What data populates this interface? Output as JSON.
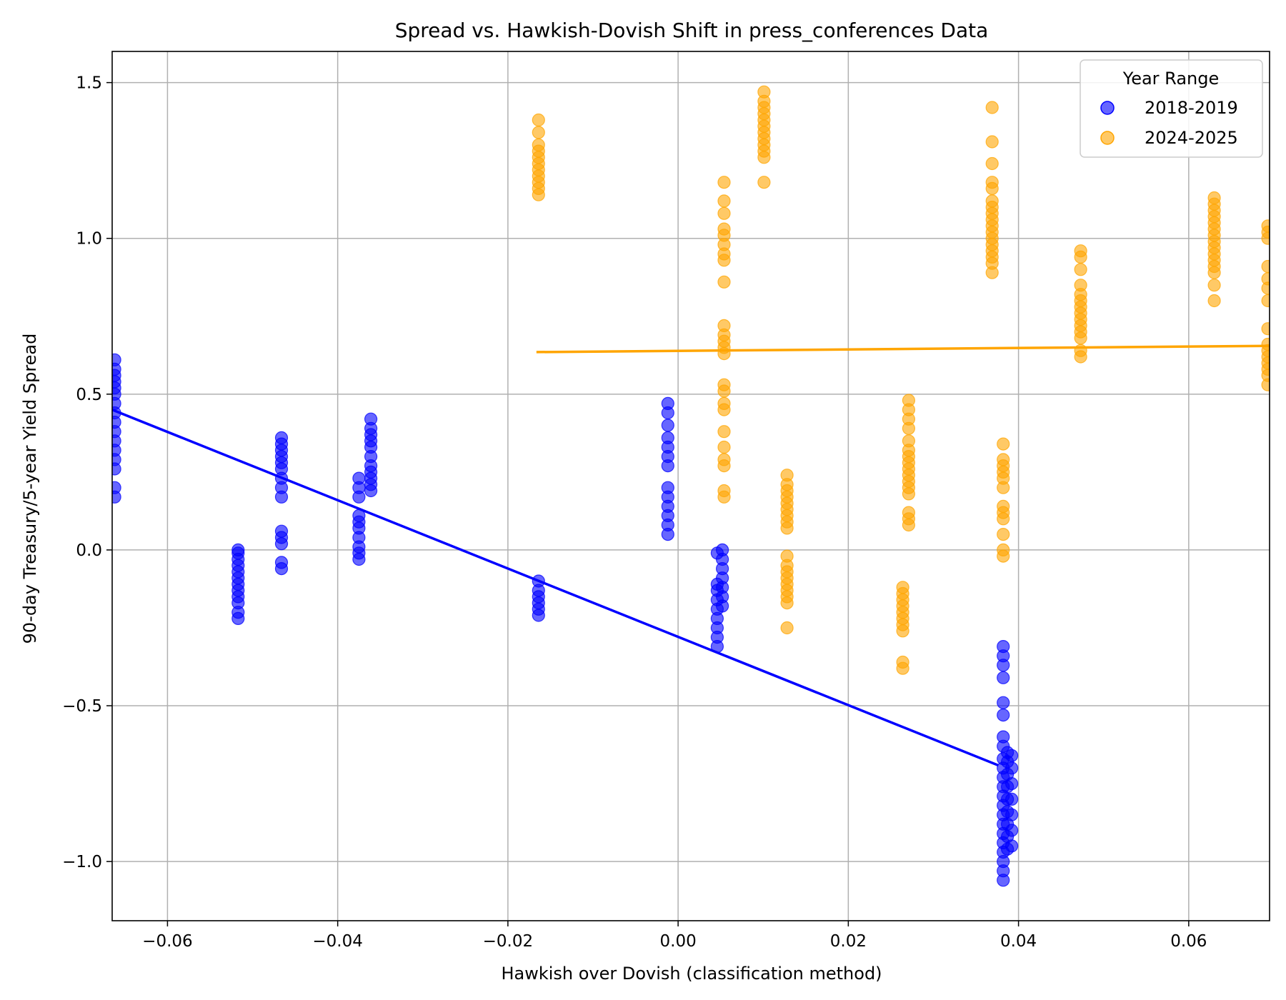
{
  "chart_data": {
    "type": "scatter",
    "title": "Spread vs. Hawkish-Dovish Shift in press_conferences Data",
    "xlabel": "Hawkish over Dovish (classification method)",
    "ylabel": "90-day Treasury/5-year Yield Spread",
    "xlim": [
      -0.0665,
      0.0695
    ],
    "ylim": [
      -1.19,
      1.6
    ],
    "x_ticks": [
      -0.06,
      -0.04,
      -0.02,
      0.0,
      0.02,
      0.04,
      0.06
    ],
    "x_tick_labels": [
      "−0.06",
      "−0.04",
      "−0.02",
      "0.00",
      "0.02",
      "0.04",
      "0.06"
    ],
    "y_ticks": [
      -1.0,
      -0.5,
      0.0,
      0.5,
      1.0,
      1.5
    ],
    "y_tick_labels": [
      "−1.0",
      "−0.5",
      "0.0",
      "0.5",
      "1.0",
      "1.5"
    ],
    "grid": true,
    "legend": {
      "title": "Year Range",
      "position": "top-right"
    },
    "series": [
      {
        "name": "2018-2019",
        "color": "#0000ff",
        "marker_alpha": 0.6,
        "groups": [
          {
            "x": -0.0662,
            "y": [
              0.17,
              0.2,
              0.26,
              0.29,
              0.32,
              0.35,
              0.38,
              0.41,
              0.44,
              0.47,
              0.5,
              0.52,
              0.54,
              0.56,
              0.58,
              0.61
            ]
          },
          {
            "x": -0.0517,
            "y": [
              -0.22,
              -0.2,
              -0.17,
              -0.15,
              -0.13,
              -0.11,
              -0.09,
              -0.07,
              -0.05,
              -0.03,
              -0.01,
              0.0
            ]
          },
          {
            "x": -0.0466,
            "y": [
              -0.06,
              -0.04,
              0.02,
              0.04,
              0.06,
              0.17,
              0.2,
              0.23,
              0.26,
              0.28,
              0.3,
              0.32,
              0.34,
              0.36
            ]
          },
          {
            "x": -0.0375,
            "y": [
              -0.03,
              -0.01,
              0.01,
              0.04,
              0.07,
              0.09,
              0.11,
              0.17,
              0.2,
              0.23
            ]
          },
          {
            "x": -0.0361,
            "y": [
              0.19,
              0.21,
              0.23,
              0.25,
              0.27,
              0.3,
              0.33,
              0.35,
              0.37,
              0.39,
              0.42
            ]
          },
          {
            "x": -0.0164,
            "y": [
              -0.21,
              -0.19,
              -0.17,
              -0.15,
              -0.13,
              -0.1
            ]
          },
          {
            "x": -0.0012,
            "y": [
              0.05,
              0.08,
              0.11,
              0.14,
              0.17,
              0.2,
              0.27,
              0.3,
              0.33,
              0.36,
              0.4,
              0.44,
              0.47
            ]
          },
          {
            "x": 0.0046,
            "y": [
              -0.31,
              -0.28,
              -0.25,
              -0.22,
              -0.19,
              -0.16,
              -0.13,
              -0.11,
              -0.01
            ]
          },
          {
            "x": 0.0052,
            "y": [
              -0.18,
              -0.15,
              -0.12,
              -0.09,
              -0.06,
              -0.03,
              0.0
            ]
          },
          {
            "x": 0.0382,
            "y": [
              -1.06,
              -1.03,
              -1.0,
              -0.97,
              -0.94,
              -0.91,
              -0.88,
              -0.85,
              -0.82,
              -0.79,
              -0.76,
              -0.73,
              -0.7,
              -0.67,
              -0.63,
              -0.6,
              -0.53,
              -0.49,
              -0.41,
              -0.37,
              -0.34,
              -0.31
            ]
          },
          {
            "x": 0.0387,
            "y": [
              -0.96,
              -0.92,
              -0.88,
              -0.84,
              -0.8,
              -0.76,
              -0.72,
              -0.68,
              -0.65
            ]
          },
          {
            "x": 0.0392,
            "y": [
              -0.95,
              -0.9,
              -0.85,
              -0.8,
              -0.75,
              -0.7,
              -0.66
            ]
          }
        ],
        "trendline": {
          "x": [
            -0.0665,
            0.0375
          ],
          "y": [
            0.45,
            -0.69
          ]
        }
      },
      {
        "name": "2024-2025",
        "color": "#ffa500",
        "marker_alpha": 0.6,
        "groups": [
          {
            "x": -0.0164,
            "y": [
              1.14,
              1.16,
              1.18,
              1.2,
              1.22,
              1.24,
              1.26,
              1.28,
              1.3,
              1.34,
              1.38
            ]
          },
          {
            "x": 0.0054,
            "y": [
              0.17,
              0.19,
              0.27,
              0.29,
              0.33,
              0.38,
              0.45,
              0.47,
              0.51,
              0.53,
              0.63,
              0.65,
              0.67,
              0.69,
              0.72,
              0.86,
              0.93,
              0.95,
              0.98,
              1.01,
              1.03,
              1.08,
              1.12,
              1.18
            ]
          },
          {
            "x": 0.0101,
            "y": [
              1.18,
              1.26,
              1.28,
              1.3,
              1.32,
              1.34,
              1.36,
              1.38,
              1.4,
              1.42,
              1.44,
              1.47
            ]
          },
          {
            "x": 0.0128,
            "y": [
              -0.25,
              -0.17,
              -0.15,
              -0.13,
              -0.11,
              -0.09,
              -0.07,
              -0.05,
              -0.02,
              0.07,
              0.09,
              0.11,
              0.13,
              0.15,
              0.17,
              0.19,
              0.21,
              0.24
            ]
          },
          {
            "x": 0.0264,
            "y": [
              -0.38,
              -0.36,
              -0.26,
              -0.24,
              -0.22,
              -0.2,
              -0.18,
              -0.16,
              -0.14,
              -0.12
            ]
          },
          {
            "x": 0.0271,
            "y": [
              0.08,
              0.1,
              0.12,
              0.18,
              0.2,
              0.22,
              0.24,
              0.26,
              0.28,
              0.3,
              0.32,
              0.35,
              0.39,
              0.42,
              0.45,
              0.48
            ]
          },
          {
            "x": 0.0369,
            "y": [
              0.89,
              0.92,
              0.94,
              0.96,
              0.98,
              1.0,
              1.02,
              1.04,
              1.06,
              1.08,
              1.1,
              1.12,
              1.16,
              1.18,
              1.24,
              1.31,
              1.42
            ]
          },
          {
            "x": 0.0382,
            "y": [
              -0.02,
              0.0,
              0.05,
              0.1,
              0.12,
              0.14,
              0.2,
              0.23,
              0.25,
              0.27,
              0.29,
              0.34
            ]
          },
          {
            "x": 0.0473,
            "y": [
              0.62,
              0.64,
              0.68,
              0.7,
              0.72,
              0.74,
              0.76,
              0.78,
              0.8,
              0.82,
              0.85,
              0.9,
              0.94,
              0.96
            ]
          },
          {
            "x": 0.063,
            "y": [
              0.8,
              0.85,
              0.89,
              0.91,
              0.93,
              0.95,
              0.97,
              0.99,
              1.01,
              1.03,
              1.05,
              1.07,
              1.09,
              1.11,
              1.13
            ]
          },
          {
            "x": 0.0693,
            "y": [
              0.53,
              0.56,
              0.58,
              0.6,
              0.62,
              0.64,
              0.66,
              0.71,
              0.8,
              0.84,
              0.87,
              0.91,
              1.0,
              1.02,
              1.04
            ]
          }
        ],
        "trendline": {
          "x": [
            -0.0165,
            0.0695
          ],
          "y": [
            0.635,
            0.655
          ]
        }
      }
    ]
  }
}
